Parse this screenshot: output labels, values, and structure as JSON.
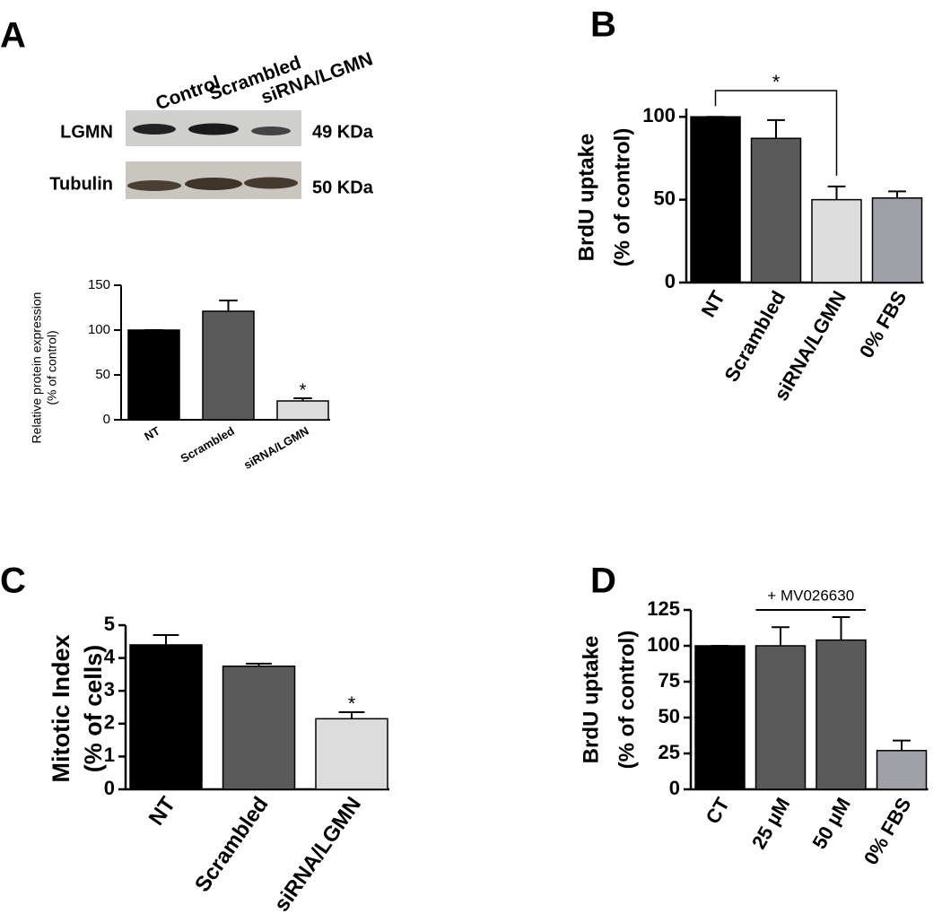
{
  "panels": [
    "A",
    "B",
    "C",
    "D"
  ],
  "blot": {
    "lanes": [
      "Control",
      "Scrambled",
      "siRNA/LGMN"
    ],
    "bands": [
      {
        "name": "LGMN",
        "size": "49 KDa"
      },
      {
        "name": "Tubulin",
        "size": "50 KDa"
      }
    ]
  },
  "chart_data": [
    {
      "type": "bar",
      "ylabel": [
        "Relative protein expression",
        "(% of control)"
      ],
      "categories": [
        "NT",
        "Scrambled",
        "siRNA/LGMN"
      ],
      "values": [
        100,
        121,
        21
      ],
      "errors": [
        0,
        12,
        3
      ],
      "colors": [
        "#000000",
        "#5a5a5a",
        "#dcdcdc"
      ],
      "significance": [
        null,
        null,
        "*"
      ],
      "ylim": [
        0,
        150
      ],
      "yticks": [
        0,
        50,
        100,
        150
      ]
    },
    {
      "type": "bar",
      "ylabel": [
        "BrdU uptake",
        "(% of control)"
      ],
      "categories": [
        "NT",
        "Scrambled",
        "siRNA/LGMN",
        "0% FBS"
      ],
      "values": [
        100,
        87,
        50,
        51
      ],
      "errors": [
        0,
        11,
        8,
        4
      ],
      "colors": [
        "#000000",
        "#5a5a5a",
        "#dcdcdc",
        "#a0a0a8"
      ],
      "significance": [
        null,
        null,
        "*",
        null
      ],
      "ylim": [
        0,
        105
      ],
      "yticks": [
        0,
        50,
        100
      ]
    },
    {
      "type": "bar",
      "ylabel": [
        "Mitotic Index",
        "(% of cells)"
      ],
      "categories": [
        "NT",
        "Scrambled",
        "siRNA/LGMN"
      ],
      "values": [
        4.4,
        3.75,
        2.15
      ],
      "errors": [
        0.3,
        0.08,
        0.2
      ],
      "colors": [
        "#000000",
        "#5a5a5a",
        "#dcdcdc"
      ],
      "significance": [
        null,
        null,
        "*"
      ],
      "ylim": [
        0,
        5
      ],
      "yticks": [
        0,
        1,
        2,
        3,
        4,
        5
      ]
    },
    {
      "type": "bar",
      "ylabel": [
        "BrdU uptake",
        "(% of control)"
      ],
      "categories": [
        "CT",
        "25 µM",
        "50 µM",
        "0% FBS"
      ],
      "values": [
        100,
        100,
        104,
        27
      ],
      "errors": [
        0,
        13,
        16,
        7
      ],
      "colors": [
        "#000000",
        "#5a5a5a",
        "#5a5a5a",
        "#a0a0a8"
      ],
      "group_label": "+ MV026630",
      "ylim": [
        0,
        125
      ],
      "yticks": [
        0,
        25,
        50,
        75,
        100,
        125
      ]
    }
  ]
}
